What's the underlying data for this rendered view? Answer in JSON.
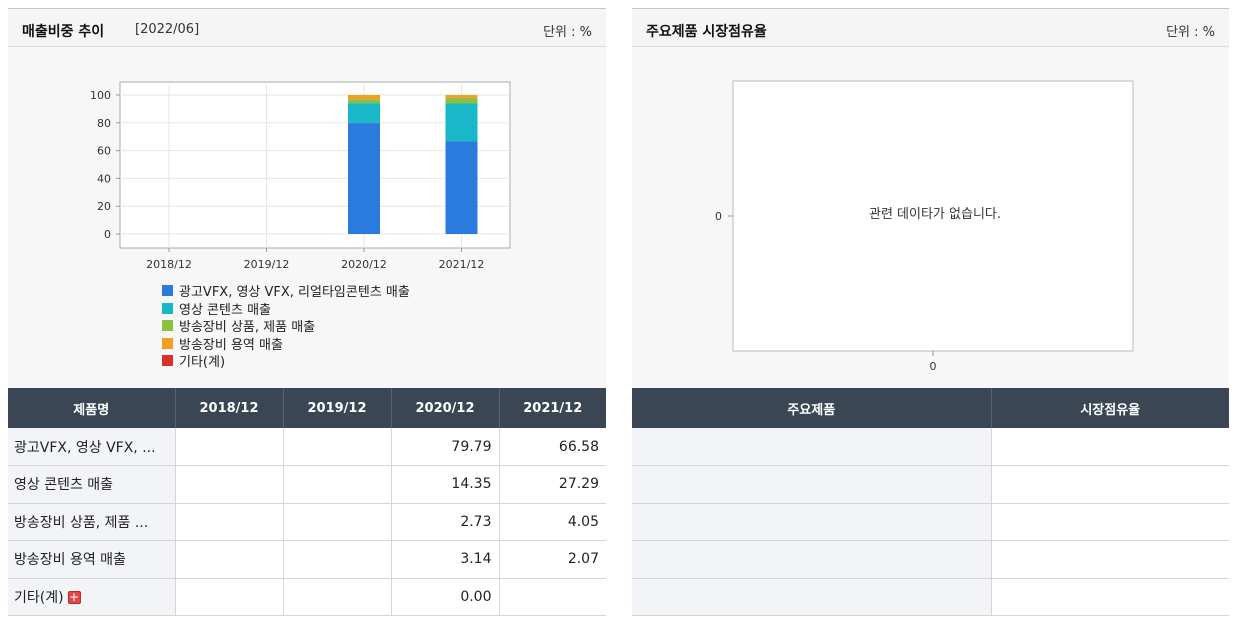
{
  "left": {
    "title": "매출비중 추이",
    "date": "[2022/06]",
    "unit": "단위 : %",
    "legend": [
      {
        "label": "광고VFX, 영상 VFX, 리얼타임콘텐츠 매출",
        "color": "#2b7bde"
      },
      {
        "label": "영상 콘텐츠 매출",
        "color": "#19b8c9"
      },
      {
        "label": "방송장비 상품, 제품 매출",
        "color": "#8dbf42"
      },
      {
        "label": "방송장비 용역 매출",
        "color": "#f0a124"
      },
      {
        "label": "기타(계)",
        "color": "#d9302c"
      }
    ],
    "table": {
      "headers": [
        "제품명",
        "2018/12",
        "2019/12",
        "2020/12",
        "2021/12"
      ],
      "rows": [
        {
          "name": "광고VFX, 영상 VFX, ...",
          "values": [
            "",
            "",
            "79.79",
            "66.58"
          ]
        },
        {
          "name": "영상 콘텐츠 매출",
          "values": [
            "",
            "",
            "14.35",
            "27.29"
          ]
        },
        {
          "name": "방송장비 상품, 제품 ...",
          "values": [
            "",
            "",
            "2.73",
            "4.05"
          ]
        },
        {
          "name": "방송장비 용역 매출",
          "values": [
            "",
            "",
            "3.14",
            "2.07"
          ]
        },
        {
          "name": "기타(계)",
          "values": [
            "",
            "",
            "0.00",
            ""
          ]
        }
      ]
    }
  },
  "right": {
    "title": "주요제품 시장점유율",
    "unit": "단위 : %",
    "no_data": "관련 데이타가 없습니다.",
    "y_tick": "0",
    "x_tick": "0",
    "table": {
      "headers": [
        "주요제품",
        "시장점유율"
      ],
      "row_count": 5
    }
  },
  "chart_data": [
    {
      "type": "bar",
      "stacked": true,
      "categories": [
        "2018/12",
        "2019/12",
        "2020/12",
        "2021/12"
      ],
      "ylim": [
        0,
        100
      ],
      "yticks": [
        "0",
        "20",
        "40",
        "60",
        "80",
        "100"
      ],
      "series": [
        {
          "name": "광고VFX, 영상 VFX, 리얼타임콘텐츠 매출",
          "color": "#2b7bde",
          "values": [
            null,
            null,
            79.79,
            66.58
          ]
        },
        {
          "name": "영상 콘텐츠 매출",
          "color": "#19b8c9",
          "values": [
            null,
            null,
            14.35,
            27.29
          ]
        },
        {
          "name": "방송장비 상품, 제품 매출",
          "color": "#8dbf42",
          "values": [
            null,
            null,
            2.73,
            4.05
          ]
        },
        {
          "name": "방송장비 용역 매출",
          "color": "#f0a124",
          "values": [
            null,
            null,
            3.14,
            2.07
          ]
        },
        {
          "name": "기타(계)",
          "color": "#d9302c",
          "values": [
            null,
            null,
            0.0,
            null
          ]
        }
      ],
      "grid": true,
      "legend_position": "bottom"
    },
    {
      "type": "bar",
      "categories": [],
      "series": [],
      "message": "관련 데이타가 없습니다."
    }
  ]
}
